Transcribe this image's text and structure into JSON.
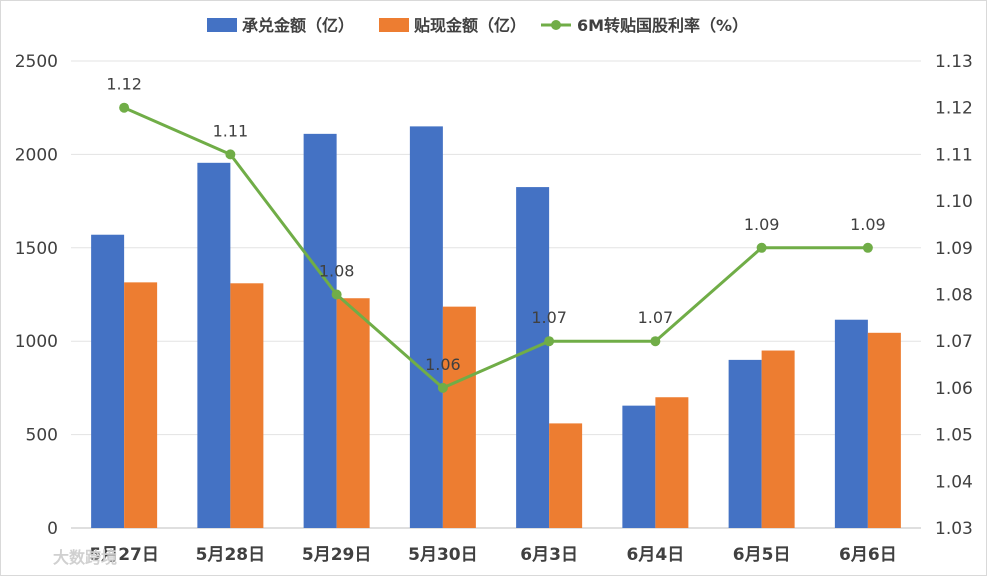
{
  "chart_data": {
    "type": "bar",
    "categories": [
      "5月27日",
      "5月28日",
      "5月29日",
      "5月30日",
      "6月3日",
      "6月4日",
      "6月5日",
      "6月6日"
    ],
    "series": [
      {
        "name": "承兑金额（亿）",
        "type": "bar",
        "axis": "left",
        "color": "#4472C4",
        "values": [
          1570,
          1955,
          2110,
          2150,
          1825,
          655,
          900,
          1115
        ]
      },
      {
        "name": "贴现金额（亿）",
        "type": "bar",
        "axis": "left",
        "color": "#ED7D31",
        "values": [
          1315,
          1310,
          1230,
          1185,
          560,
          700,
          950,
          1045
        ]
      },
      {
        "name": "6M转贴国股利率（%）",
        "type": "line",
        "axis": "right",
        "color": "#70AD47",
        "values": [
          1.12,
          1.11,
          1.08,
          1.06,
          1.07,
          1.07,
          1.09,
          1.09
        ],
        "labels": [
          "1.12",
          "1.11",
          "1.08",
          "1.06",
          "1.07",
          "1.07",
          "1.09",
          "1.09"
        ]
      }
    ],
    "y_left": {
      "min": 0,
      "max": 2500,
      "ticks": [
        "0",
        "500",
        "1000",
        "1500",
        "2000",
        "2500"
      ]
    },
    "y_right": {
      "min": 1.03,
      "max": 1.13,
      "ticks": [
        "1.03",
        "1.04",
        "1.05",
        "1.06",
        "1.07",
        "1.08",
        "1.09",
        "1.10",
        "1.11",
        "1.12",
        "1.13"
      ]
    },
    "grid": true,
    "legend_position": "top"
  },
  "watermark": "大数跨境"
}
